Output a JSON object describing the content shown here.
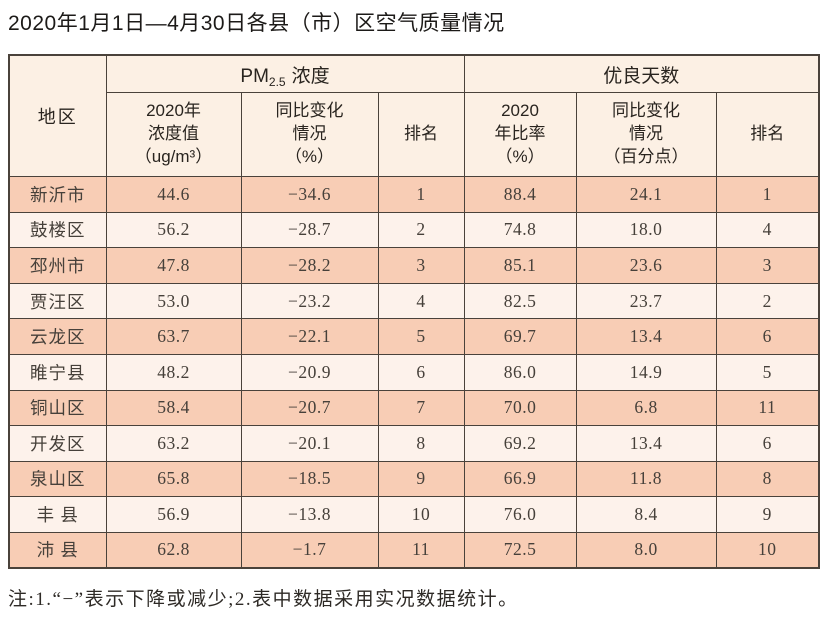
{
  "page": {
    "title": "2020年1月1日—4月30日各县（市）区空气质量情况",
    "footnote": "注:1.“−”表示下降或减少;2.表中数据采用实况数据统计。"
  },
  "colors": {
    "row_odd": "#f8cdb5",
    "row_even": "#fdf2eb",
    "header_bg": "#fcf0e4",
    "border": "#4a423b"
  },
  "table": {
    "region_header": "地区",
    "pm25_group": {
      "base": "PM",
      "sub": "2.5",
      "label": "浓度"
    },
    "good_days_group": "优良天数",
    "sub_headers": {
      "pm25_value": "2020年\n浓度值\n（ug/m³）",
      "pm25_change": "同比变化\n情况\n（%）",
      "pm25_rank": "排名",
      "good_rate": "2020\n年比率\n（%）",
      "good_change": "同比变化\n情况\n（百分点）",
      "good_rank": "排名"
    },
    "rows": [
      {
        "region": "新沂市",
        "pm25": "44.6",
        "pm25_change": "−34.6",
        "pm25_rank": "1",
        "rate": "88.4",
        "rate_change": "24.1",
        "rate_rank": "1"
      },
      {
        "region": "鼓楼区",
        "pm25": "56.2",
        "pm25_change": "−28.7",
        "pm25_rank": "2",
        "rate": "74.8",
        "rate_change": "18.0",
        "rate_rank": "4"
      },
      {
        "region": "邳州市",
        "pm25": "47.8",
        "pm25_change": "−28.2",
        "pm25_rank": "3",
        "rate": "85.1",
        "rate_change": "23.6",
        "rate_rank": "3"
      },
      {
        "region": "贾汪区",
        "pm25": "53.0",
        "pm25_change": "−23.2",
        "pm25_rank": "4",
        "rate": "82.5",
        "rate_change": "23.7",
        "rate_rank": "2"
      },
      {
        "region": "云龙区",
        "pm25": "63.7",
        "pm25_change": "−22.1",
        "pm25_rank": "5",
        "rate": "69.7",
        "rate_change": "13.4",
        "rate_rank": "6"
      },
      {
        "region": "睢宁县",
        "pm25": "48.2",
        "pm25_change": "−20.9",
        "pm25_rank": "6",
        "rate": "86.0",
        "rate_change": "14.9",
        "rate_rank": "5"
      },
      {
        "region": "铜山区",
        "pm25": "58.4",
        "pm25_change": "−20.7",
        "pm25_rank": "7",
        "rate": "70.0",
        "rate_change": "6.8",
        "rate_rank": "11"
      },
      {
        "region": "开发区",
        "pm25": "63.2",
        "pm25_change": "−20.1",
        "pm25_rank": "8",
        "rate": "69.2",
        "rate_change": "13.4",
        "rate_rank": "6"
      },
      {
        "region": "泉山区",
        "pm25": "65.8",
        "pm25_change": "−18.5",
        "pm25_rank": "9",
        "rate": "66.9",
        "rate_change": "11.8",
        "rate_rank": "8"
      },
      {
        "region": "丰 县",
        "pm25": "56.9",
        "pm25_change": "−13.8",
        "pm25_rank": "10",
        "rate": "76.0",
        "rate_change": "8.4",
        "rate_rank": "9"
      },
      {
        "region": "沛 县",
        "pm25": "62.8",
        "pm25_change": "−1.7",
        "pm25_rank": "11",
        "rate": "72.5",
        "rate_change": "8.0",
        "rate_rank": "10"
      }
    ]
  }
}
